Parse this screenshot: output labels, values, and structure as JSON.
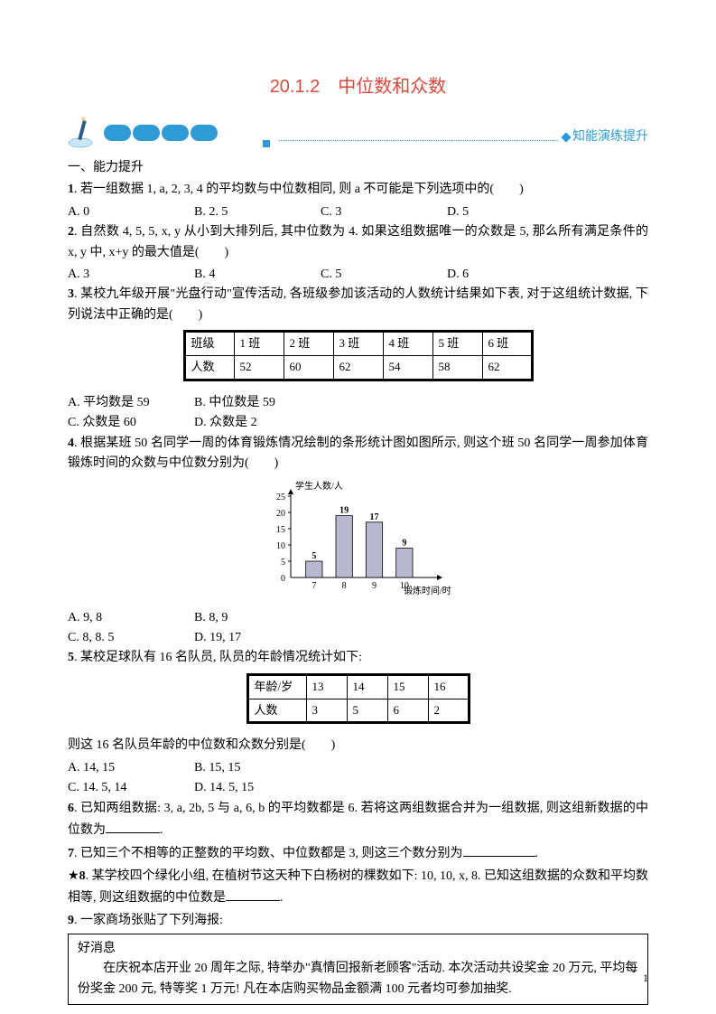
{
  "title": "20.1.2　中位数和众数",
  "banner_text": "知能演练提升",
  "section1": "一、能力提升",
  "q1": {
    "num": "1",
    "text": ". 若一组数据 1, a, 2, 3, 4 的平均数与中位数相同, 则 a 不可能是下列选项中的(　　)",
    "opts": {
      "a": "A. 0",
      "b": "B. 2. 5",
      "c": "C. 3",
      "d": "D. 5"
    }
  },
  "q2": {
    "num": "2",
    "text": ". 自然数 4, 5, 5, x, y 从小到大排列后, 其中位数为 4. 如果这组数据唯一的众数是 5, 那么所有满足条件的 x, y 中, x+y 的最大值是(　　)",
    "opts": {
      "a": "A. 3",
      "b": "B. 4",
      "c": "C. 5",
      "d": "D. 6"
    }
  },
  "q3": {
    "num": "3",
    "text": ". 某校九年级开展\"光盘行动\"宣传活动, 各班级参加该活动的人数统计结果如下表, 对于这组统计数据, 下列说法中正确的是(　　)",
    "table": {
      "headers": [
        "班级",
        "1 班",
        "2 班",
        "3 班",
        "4 班",
        "5 班",
        "6 班"
      ],
      "row": [
        "人数",
        "52",
        "60",
        "62",
        "54",
        "58",
        "62"
      ]
    },
    "opts": {
      "a": "A. 平均数是 59",
      "b": "B. 中位数是 59",
      "c": "C. 众数是 60",
      "d": "D. 众数是 2"
    }
  },
  "q4": {
    "num": "4",
    "text": ". 根据某班 50 名同学一周的体育锻炼情况绘制的条形统计图如图所示, 则这个班 50 名同学一周参加体育锻炼时间的众数与中位数分别为(　　)",
    "chart": {
      "ylabel": "学生人数/人",
      "xlabel": "锻炼时间/时",
      "ymax": 25,
      "ytick": 5,
      "categories": [
        "7",
        "8",
        "9",
        "10"
      ],
      "values": [
        5,
        19,
        17,
        9
      ],
      "value_labels": [
        "5",
        "19",
        "17",
        "9"
      ],
      "bar_color": "#b8b8d0",
      "bar_border": "#000000",
      "axis_color": "#000000"
    },
    "opts": {
      "a": "A. 9, 8",
      "b": "B. 8, 9",
      "c": "C. 8, 8. 5",
      "d": "D. 19, 17"
    }
  },
  "q5": {
    "num": "5",
    "text": ". 某校足球队有 16 名队员, 队员的年龄情况统计如下:",
    "table": {
      "headers": [
        "年龄/岁",
        "13",
        "14",
        "15",
        "16"
      ],
      "row": [
        "人数",
        "3",
        "5",
        "6",
        "2"
      ]
    },
    "text2": "则这 16 名队员年龄的中位数和众数分别是(　　)",
    "opts": {
      "a": "A. 14, 15",
      "b": "B. 15, 15",
      "c": "C. 14. 5, 14",
      "d": "D. 14. 5, 15"
    }
  },
  "q6": {
    "num": "6",
    "text_before": ". 已知两组数据: 3, a, 2b, 5 与 a, 6, b 的平均数都是 6. 若将这两组数据合并为一组数据, 则这组新数据的中位数为",
    "text_after": "."
  },
  "q7": {
    "num": "7",
    "text_before": ". 已知三个不相等的正整数的平均数、中位数都是 3, 则这三个数分别为",
    "text_after": "."
  },
  "q8": {
    "star": "★",
    "num": "8",
    "text_before": ". 某学校四个绿化小组, 在植树节这天种下白杨树的棵数如下: 10, 10, x, 8. 已知这组数据的众数和平均数相等, 则这组数据的中位数是",
    "text_after": "."
  },
  "q9": {
    "num": "9",
    "text": ". 一家商场张贴了下列海报:",
    "poster": {
      "line1": "好消息",
      "line2": "在庆祝本店开业 20 周年之际, 特举办\"真情回报新老顾客\"活动. 本次活动共设奖金 20 万元, 平均每份奖金 200 元, 特等奖 1 万元! 凡在本店购买物品金额满 100 元者均可参加抽奖."
    }
  },
  "page_number": "1"
}
